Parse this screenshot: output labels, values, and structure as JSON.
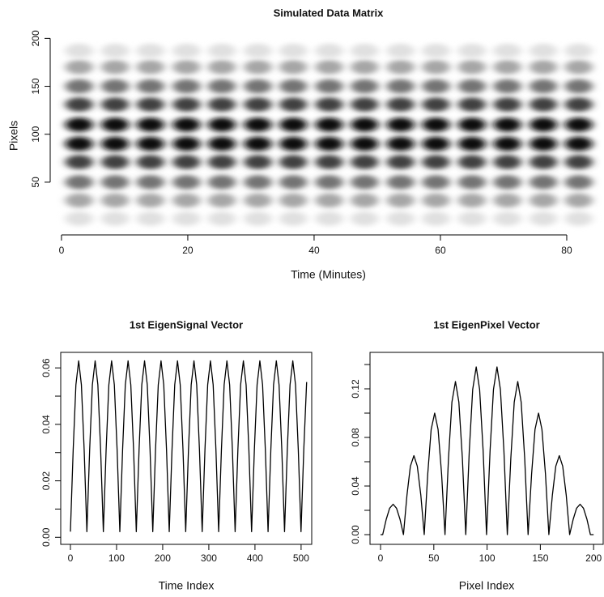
{
  "chart_data": [
    {
      "type": "heatmap",
      "title": "Simulated Data Matrix",
      "xlabel": "Time (Minutes)",
      "ylabel": "Pixels",
      "xlim": [
        -1.4,
        85.9
      ],
      "xticks": [
        0,
        20,
        40,
        60,
        80
      ],
      "ylim": [
        -5,
        202
      ],
      "yticks": [
        50,
        100,
        150,
        200
      ],
      "x": [
        2.8,
        8.5,
        14.1,
        19.8,
        25.4,
        31.1,
        36.7,
        42.4,
        48,
        53.7,
        59.3,
        65,
        70.6,
        76.3,
        81.9
      ],
      "y": [
        12,
        31,
        50,
        71,
        90,
        110,
        131,
        150,
        170,
        187
      ],
      "z": [
        [
          0.12,
          0.12,
          0.12,
          0.12,
          0.12,
          0.12,
          0.12,
          0.12,
          0.12,
          0.12,
          0.12,
          0.12,
          0.12,
          0.12,
          0.12
        ],
        [
          0.35,
          0.35,
          0.35,
          0.35,
          0.35,
          0.35,
          0.35,
          0.35,
          0.35,
          0.35,
          0.35,
          0.35,
          0.35,
          0.35,
          0.35
        ],
        [
          0.55,
          0.55,
          0.55,
          0.55,
          0.55,
          0.55,
          0.55,
          0.55,
          0.55,
          0.55,
          0.55,
          0.55,
          0.55,
          0.55,
          0.55
        ],
        [
          0.75,
          0.75,
          0.75,
          0.75,
          0.75,
          0.75,
          0.75,
          0.75,
          0.75,
          0.75,
          0.75,
          0.75,
          0.75,
          0.75,
          0.75
        ],
        [
          0.95,
          0.95,
          0.95,
          0.95,
          0.95,
          0.95,
          0.95,
          0.95,
          0.95,
          0.95,
          0.95,
          0.95,
          0.95,
          0.95,
          0.95
        ],
        [
          0.95,
          0.95,
          0.95,
          0.95,
          0.95,
          0.95,
          0.95,
          0.95,
          0.95,
          0.95,
          0.95,
          0.95,
          0.95,
          0.95,
          0.95
        ],
        [
          0.75,
          0.75,
          0.75,
          0.75,
          0.75,
          0.75,
          0.75,
          0.75,
          0.75,
          0.75,
          0.75,
          0.75,
          0.75,
          0.75,
          0.75
        ],
        [
          0.55,
          0.55,
          0.55,
          0.55,
          0.55,
          0.55,
          0.55,
          0.55,
          0.55,
          0.55,
          0.55,
          0.55,
          0.55,
          0.55,
          0.55
        ],
        [
          0.35,
          0.35,
          0.35,
          0.35,
          0.35,
          0.35,
          0.35,
          0.35,
          0.35,
          0.35,
          0.35,
          0.35,
          0.35,
          0.35,
          0.35
        ],
        [
          0.12,
          0.12,
          0.12,
          0.12,
          0.12,
          0.12,
          0.12,
          0.12,
          0.12,
          0.12,
          0.12,
          0.12,
          0.12,
          0.12,
          0.12
        ]
      ],
      "box": false
    },
    {
      "type": "line",
      "title": "1st EigenSignal Vector",
      "xlabel": "Time Index",
      "color": "#000000",
      "box": true,
      "xlim": [
        -21,
        523
      ],
      "xticks": [
        0,
        100,
        200,
        300,
        400,
        500
      ],
      "ylim": [
        -0.0025,
        0.0655
      ],
      "yticks": [
        {
          "value": 0,
          "label": "0.00"
        },
        0.02,
        0.04,
        0.06
      ],
      "yminor": [
        0.01,
        0.03,
        0.05
      ],
      "x": [
        0,
        6,
        11.9,
        17.9,
        23.8,
        29.8,
        35.7,
        41.7,
        47.6,
        53.6,
        59.5,
        65.5,
        71.4,
        77.4,
        83.3,
        89.3,
        95.2,
        101.2,
        107.1,
        113.1,
        119,
        125,
        130.9,
        136.9,
        142.8,
        148.8,
        154.7,
        160.7,
        166.6,
        172.6,
        178.5,
        184.5,
        190.4,
        196.4,
        202.3,
        208.3,
        214.2,
        220.2,
        226.1,
        232.1,
        238,
        244,
        249.9,
        255.9,
        261.8,
        267.8,
        273.7,
        279.7,
        285.6,
        291.6,
        297.5,
        303.5,
        309.4,
        315.4,
        321.3,
        327.3,
        333.2,
        339.2,
        345.1,
        351.1,
        357,
        363,
        368.9,
        374.9,
        380.8,
        386.8,
        392.7,
        398.7,
        404.6,
        410.6,
        416.5,
        422.5,
        428.4,
        434.4,
        440.3,
        446.3,
        452.2,
        458.2,
        464.1,
        470.1,
        476,
        482,
        487.9,
        493.9,
        499.8,
        505.8,
        512
      ],
      "values": [
        0.002,
        0.031,
        0.054,
        0.0625,
        0.054,
        0.031,
        0.002,
        0.031,
        0.054,
        0.0625,
        0.054,
        0.031,
        0.002,
        0.031,
        0.054,
        0.0625,
        0.054,
        0.031,
        0.002,
        0.031,
        0.054,
        0.0625,
        0.054,
        0.031,
        0.002,
        0.031,
        0.054,
        0.0625,
        0.054,
        0.031,
        0.002,
        0.031,
        0.054,
        0.0625,
        0.054,
        0.031,
        0.002,
        0.031,
        0.054,
        0.0625,
        0.054,
        0.031,
        0.002,
        0.031,
        0.054,
        0.0625,
        0.054,
        0.031,
        0.002,
        0.031,
        0.054,
        0.0625,
        0.054,
        0.031,
        0.002,
        0.031,
        0.054,
        0.0625,
        0.054,
        0.031,
        0.002,
        0.031,
        0.054,
        0.0625,
        0.054,
        0.031,
        0.002,
        0.031,
        0.054,
        0.0625,
        0.054,
        0.031,
        0.002,
        0.031,
        0.054,
        0.0625,
        0.054,
        0.031,
        0.002,
        0.031,
        0.054,
        0.0625,
        0.054,
        0.031,
        0.002,
        0.031,
        0.055
      ]
    },
    {
      "type": "line",
      "title": "1st EigenPixel Vector",
      "xlabel": "Pixel Index",
      "color": "#000000",
      "box": true,
      "xlim": [
        -9.9,
        209
      ],
      "xticks": [
        0,
        50,
        100,
        150,
        200
      ],
      "ylim": [
        -0.008,
        0.15
      ],
      "yticks": [
        {
          "value": 0,
          "label": "0.00"
        },
        0.04,
        0.08,
        0.12
      ],
      "yminor": [
        0.02,
        0.06,
        0.1,
        0.14
      ],
      "x": [
        0,
        2,
        5.3,
        8.5,
        11.8,
        15,
        18.3,
        21.5,
        24.8,
        28,
        31.3,
        34.5,
        37.8,
        41,
        44.3,
        47.5,
        50.8,
        54,
        57.3,
        60.5,
        63.8,
        67,
        70.3,
        73.5,
        76.8,
        80,
        83.3,
        86.5,
        89.8,
        93,
        96.3,
        99.5,
        102.8,
        106,
        109.3,
        112.5,
        115.8,
        119,
        122.3,
        125.5,
        128.8,
        132,
        135.3,
        138.5,
        141.8,
        145,
        148.3,
        151.5,
        154.8,
        158,
        161.3,
        164.5,
        167.8,
        171,
        174.3,
        177.5,
        180.8,
        184,
        187.3,
        190.5,
        193.8,
        197,
        200
      ],
      "values": [
        0,
        0,
        0.0125,
        0.0217,
        0.025,
        0.0217,
        0.0125,
        0,
        0.0325,
        0.0563,
        0.065,
        0.0563,
        0.0325,
        0,
        0.05,
        0.0866,
        0.1,
        0.0866,
        0.05,
        0,
        0.063,
        0.1091,
        0.126,
        0.1091,
        0.063,
        0,
        0.069,
        0.1195,
        0.138,
        0.1195,
        0.069,
        0,
        0.069,
        0.1195,
        0.138,
        0.1195,
        0.069,
        0,
        0.063,
        0.1091,
        0.126,
        0.1091,
        0.063,
        0,
        0.05,
        0.0866,
        0.1,
        0.0866,
        0.05,
        0,
        0.0325,
        0.0563,
        0.065,
        0.0563,
        0.0325,
        0,
        0.0125,
        0.0217,
        0.025,
        0.0217,
        0.0125,
        0,
        0
      ]
    }
  ]
}
